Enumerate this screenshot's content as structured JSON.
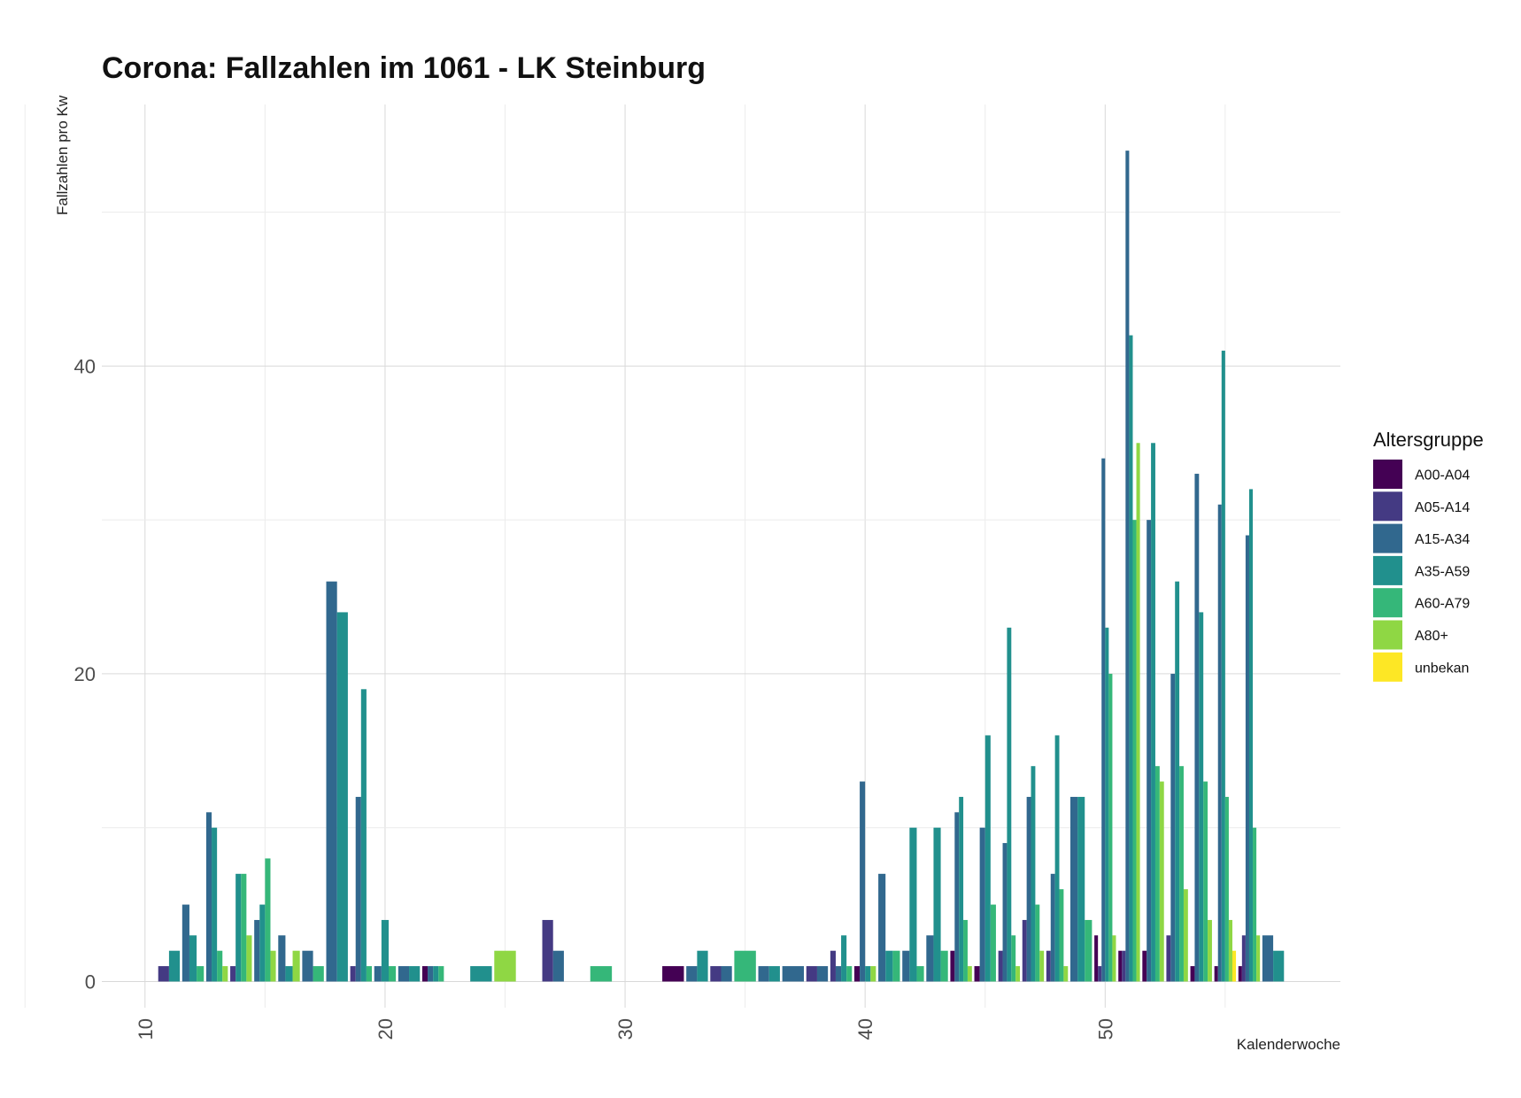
{
  "chart_data": {
    "type": "bar",
    "title": "Corona: Fallzahlen im 1061 - LK Steinburg",
    "xlabel": "Kalenderwoche",
    "ylabel": "Fallzahlen pro Kw",
    "xlim": [
      8.2,
      59.8
    ],
    "ylim": [
      -1.7,
      57
    ],
    "x_ticks": [
      10,
      20,
      30,
      40,
      50
    ],
    "y_ticks": [
      0,
      20,
      40
    ],
    "grid": true,
    "legend_position": "right",
    "legend_title": "Altersgruppe",
    "series": [
      {
        "name": "A00-A04",
        "color": "#440154"
      },
      {
        "name": "A05-A14",
        "color": "#443A83"
      },
      {
        "name": "A15-A34",
        "color": "#31688E"
      },
      {
        "name": "A35-A59",
        "color": "#21908D"
      },
      {
        "name": "A60-A79",
        "color": "#35B779"
      },
      {
        "name": "A80+",
        "color": "#8FD744"
      },
      {
        "name": "unbekan",
        "color": "#FDE725"
      }
    ],
    "weeks": [
      {
        "kw": 11,
        "values": {
          "A05-A14": 1,
          "A35-A59": 2
        }
      },
      {
        "kw": 12,
        "values": {
          "A15-A34": 5,
          "A35-A59": 3,
          "A60-A79": 1
        }
      },
      {
        "kw": 13,
        "values": {
          "A15-A34": 11,
          "A35-A59": 10,
          "A60-A79": 2,
          "A80+": 1
        }
      },
      {
        "kw": 14,
        "values": {
          "A05-A14": 1,
          "A35-A59": 7,
          "A60-A79": 7,
          "A80+": 3
        }
      },
      {
        "kw": 15,
        "values": {
          "A15-A34": 4,
          "A35-A59": 5,
          "A60-A79": 8,
          "A80+": 2
        }
      },
      {
        "kw": 16,
        "values": {
          "A15-A34": 3,
          "A35-A59": 1,
          "A80+": 2
        }
      },
      {
        "kw": 17,
        "values": {
          "A15-A34": 2,
          "A60-A79": 1
        }
      },
      {
        "kw": 18,
        "values": {
          "A15-A34": 26,
          "A35-A59": 24
        }
      },
      {
        "kw": 19,
        "values": {
          "A05-A14": 1,
          "A15-A34": 12,
          "A35-A59": 19,
          "A60-A79": 1
        }
      },
      {
        "kw": 20,
        "values": {
          "A15-A34": 1,
          "A35-A59": 4,
          "A60-A79": 1
        }
      },
      {
        "kw": 21,
        "values": {
          "A15-A34": 1,
          "A35-A59": 1
        }
      },
      {
        "kw": 22,
        "values": {
          "A00-A04": 1,
          "A15-A34": 1,
          "A35-A59": 1,
          "A60-A79": 1
        }
      },
      {
        "kw": 24,
        "values": {
          "A35-A59": 1
        }
      },
      {
        "kw": 25,
        "values": {
          "A80+": 2
        }
      },
      {
        "kw": 27,
        "values": {
          "A05-A14": 4,
          "A15-A34": 2
        }
      },
      {
        "kw": 29,
        "values": {
          "A60-A79": 1
        }
      },
      {
        "kw": 32,
        "values": {
          "A00-A04": 1
        }
      },
      {
        "kw": 33,
        "values": {
          "A15-A34": 1,
          "A35-A59": 2
        }
      },
      {
        "kw": 34,
        "values": {
          "A05-A14": 1,
          "A15-A34": 1
        }
      },
      {
        "kw": 35,
        "values": {
          "A60-A79": 2
        }
      },
      {
        "kw": 36,
        "values": {
          "A15-A34": 1,
          "A35-A59": 1
        }
      },
      {
        "kw": 37,
        "values": {
          "A15-A34": 1
        }
      },
      {
        "kw": 38,
        "values": {
          "A05-A14": 1,
          "A15-A34": 1
        }
      },
      {
        "kw": 39,
        "values": {
          "A05-A14": 2,
          "A15-A34": 1,
          "A35-A59": 3,
          "A60-A79": 1
        }
      },
      {
        "kw": 40,
        "values": {
          "A00-A04": 1,
          "A15-A34": 13,
          "A35-A59": 1,
          "A80+": 1
        }
      },
      {
        "kw": 41,
        "values": {
          "A15-A34": 7,
          "A35-A59": 2,
          "A60-A79": 2
        }
      },
      {
        "kw": 42,
        "values": {
          "A15-A34": 2,
          "A35-A59": 10,
          "A60-A79": 1
        }
      },
      {
        "kw": 43,
        "values": {
          "A15-A34": 3,
          "A35-A59": 10,
          "A60-A79": 2
        }
      },
      {
        "kw": 44,
        "values": {
          "A00-A04": 2,
          "A15-A34": 11,
          "A35-A59": 12,
          "A60-A79": 4,
          "A80+": 1
        }
      },
      {
        "kw": 45,
        "values": {
          "A00-A04": 1,
          "A15-A34": 10,
          "A35-A59": 16,
          "A60-A79": 5
        }
      },
      {
        "kw": 46,
        "values": {
          "A05-A14": 2,
          "A15-A34": 9,
          "A35-A59": 23,
          "A60-A79": 3,
          "A80+": 1
        }
      },
      {
        "kw": 47,
        "values": {
          "A05-A14": 4,
          "A15-A34": 12,
          "A35-A59": 14,
          "A60-A79": 5,
          "A80+": 2
        }
      },
      {
        "kw": 48,
        "values": {
          "A05-A14": 2,
          "A15-A34": 7,
          "A35-A59": 16,
          "A60-A79": 6,
          "A80+": 1
        }
      },
      {
        "kw": 49,
        "values": {
          "A15-A34": 12,
          "A35-A59": 12,
          "A60-A79": 4
        }
      },
      {
        "kw": 50,
        "values": {
          "A00-A04": 3,
          "A05-A14": 1,
          "A15-A34": 34,
          "A35-A59": 23,
          "A60-A79": 20,
          "A80+": 3
        }
      },
      {
        "kw": 51,
        "values": {
          "A00-A04": 2,
          "A05-A14": 2,
          "A15-A34": 54,
          "A35-A59": 42,
          "A60-A79": 30,
          "A80+": 35
        }
      },
      {
        "kw": 52,
        "values": {
          "A00-A04": 2,
          "A15-A34": 30,
          "A35-A59": 35,
          "A60-A79": 14,
          "A80+": 13
        }
      },
      {
        "kw": 53,
        "values": {
          "A05-A14": 3,
          "A15-A34": 20,
          "A35-A59": 26,
          "A60-A79": 14,
          "A80+": 6
        }
      },
      {
        "kw": 54,
        "values": {
          "A00-A04": 1,
          "A15-A34": 33,
          "A35-A59": 24,
          "A60-A79": 13,
          "A80+": 4
        }
      },
      {
        "kw": 55,
        "values": {
          "A00-A04": 1,
          "A15-A34": 31,
          "A35-A59": 41,
          "A60-A79": 12,
          "A80+": 4,
          "unbekan": 2
        }
      },
      {
        "kw": 56,
        "values": {
          "A00-A04": 1,
          "A05-A14": 3,
          "A15-A34": 29,
          "A35-A59": 32,
          "A60-A79": 10,
          "A80+": 3
        }
      },
      {
        "kw": 57,
        "values": {
          "A15-A34": 3,
          "A35-A59": 2
        }
      }
    ]
  }
}
